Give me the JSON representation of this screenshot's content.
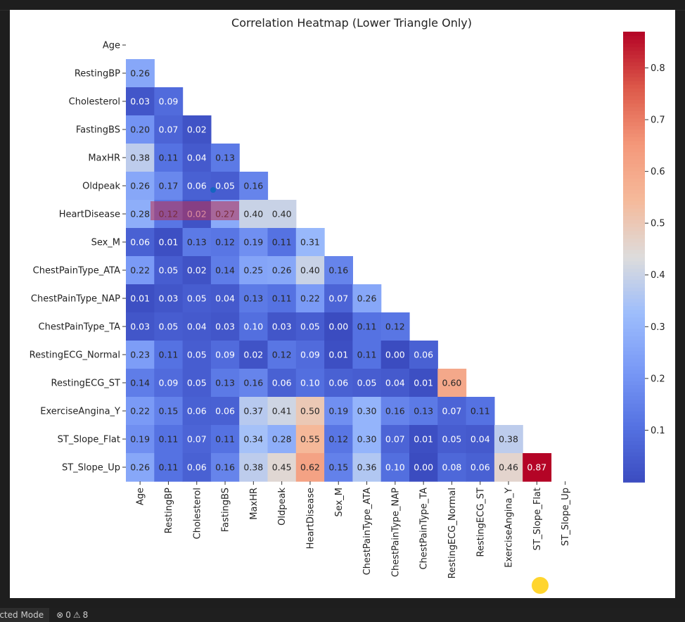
{
  "status_bar": {
    "restricted_label": "icted Mode",
    "errors_count": "0",
    "warnings_count": "8"
  },
  "chart_data": {
    "type": "heatmap",
    "title": "Correlation Heatmap (Lower Triangle Only)",
    "colormap": "coolwarm",
    "color_range": [
      0.0,
      0.87
    ],
    "colorbar_ticks": [
      "0.1",
      "0.2",
      "0.3",
      "0.4",
      "0.5",
      "0.6",
      "0.7",
      "0.8"
    ],
    "colorbar_tick_values": [
      0.1,
      0.2,
      0.3,
      0.4,
      0.5,
      0.6,
      0.7,
      0.8
    ],
    "labels": [
      "Age",
      "RestingBP",
      "Cholesterol",
      "FastingBS",
      "MaxHR",
      "Oldpeak",
      "HeartDisease",
      "Sex_M",
      "ChestPainType_ATA",
      "ChestPainType_NAP",
      "ChestPainType_TA",
      "RestingECG_Normal",
      "RestingECG_ST",
      "ExerciseAngina_Y",
      "ST_Slope_Flat",
      "ST_Slope_Up"
    ],
    "rows": [
      [],
      [
        "0.26"
      ],
      [
        "0.03",
        "0.09"
      ],
      [
        "0.20",
        "0.07",
        "0.02"
      ],
      [
        "0.38",
        "0.11",
        "0.04",
        "0.13"
      ],
      [
        "0.26",
        "0.17",
        "0.06",
        "0.05",
        "0.16"
      ],
      [
        "0.28",
        "0.12",
        "0.02",
        "0.27",
        "0.40",
        "0.40"
      ],
      [
        "0.06",
        "0.01",
        "0.13",
        "0.12",
        "0.19",
        "0.11",
        "0.31"
      ],
      [
        "0.22",
        "0.05",
        "0.02",
        "0.14",
        "0.25",
        "0.26",
        "0.40",
        "0.16"
      ],
      [
        "0.01",
        "0.03",
        "0.05",
        "0.04",
        "0.13",
        "0.11",
        "0.22",
        "0.07",
        "0.26"
      ],
      [
        "0.03",
        "0.05",
        "0.04",
        "0.03",
        "0.10",
        "0.03",
        "0.05",
        "0.00",
        "0.11",
        "0.12"
      ],
      [
        "0.23",
        "0.11",
        "0.05",
        "0.09",
        "0.02",
        "0.12",
        "0.09",
        "0.01",
        "0.11",
        "0.00",
        "0.06"
      ],
      [
        "0.14",
        "0.09",
        "0.05",
        "0.13",
        "0.16",
        "0.06",
        "0.10",
        "0.06",
        "0.05",
        "0.04",
        "0.01",
        "0.60"
      ],
      [
        "0.22",
        "0.15",
        "0.06",
        "0.06",
        "0.37",
        "0.41",
        "0.50",
        "0.19",
        "0.30",
        "0.16",
        "0.13",
        "0.07",
        "0.11"
      ],
      [
        "0.19",
        "0.11",
        "0.07",
        "0.11",
        "0.34",
        "0.28",
        "0.55",
        "0.12",
        "0.30",
        "0.07",
        "0.01",
        "0.05",
        "0.04",
        "0.38"
      ],
      [
        "0.26",
        "0.11",
        "0.06",
        "0.16",
        "0.38",
        "0.45",
        "0.62",
        "0.15",
        "0.36",
        "0.10",
        "0.00",
        "0.08",
        "0.06",
        "0.46",
        "0.87"
      ]
    ]
  }
}
